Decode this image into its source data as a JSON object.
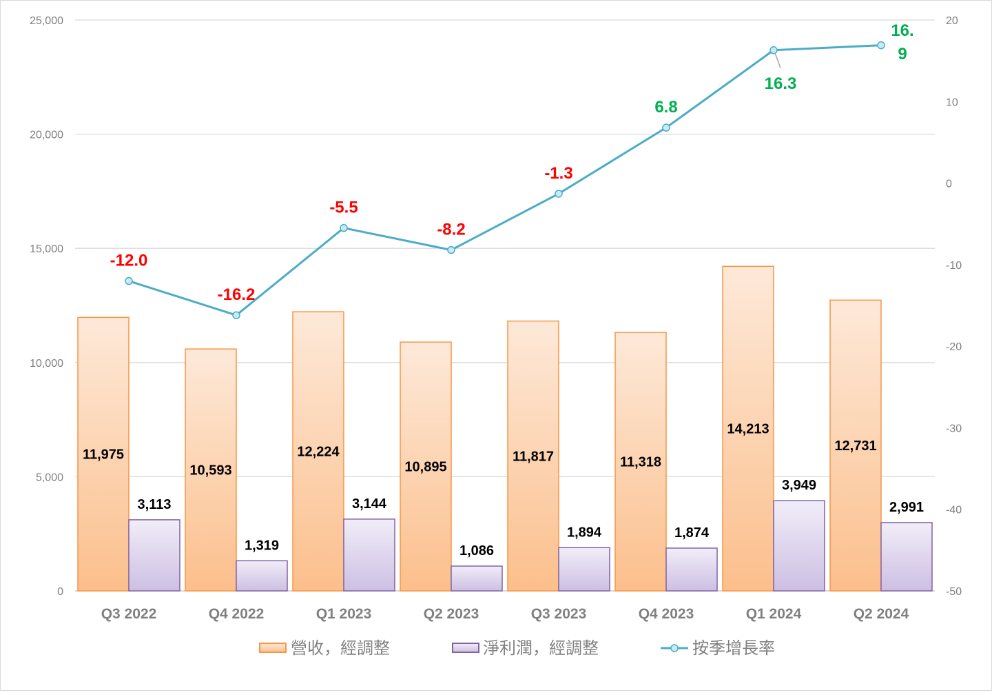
{
  "chart_data": {
    "type": "bar+line",
    "categories": [
      "Q3 2022",
      "Q4 2022",
      "Q1 2023",
      "Q2 2023",
      "Q3 2023",
      "Q4 2023",
      "Q1 2024",
      "Q2 2024"
    ],
    "series": [
      {
        "name": "營收，經調整",
        "type": "bar",
        "axis": "left",
        "values": [
          11975,
          10593,
          12224,
          10895,
          11817,
          11318,
          14213,
          12731
        ],
        "labels": [
          "11,975",
          "10,593",
          "12,224",
          "10,895",
          "11,817",
          "11,318",
          "14,213",
          "12,731"
        ],
        "color": "#f79646"
      },
      {
        "name": "淨利潤，經調整",
        "type": "bar",
        "axis": "left",
        "values": [
          3113,
          1319,
          3144,
          1086,
          1894,
          1874,
          3949,
          2991
        ],
        "labels": [
          "3,113",
          "1,319",
          "3,144",
          "1,086",
          "1,894",
          "1,874",
          "3,949",
          "2,991"
        ],
        "color": "#8064a2"
      },
      {
        "name": "按季增長率",
        "type": "line",
        "axis": "right",
        "values": [
          -12.0,
          -16.2,
          -5.5,
          -8.2,
          -1.3,
          6.8,
          16.3,
          16.9
        ],
        "labels": [
          "-12.0",
          "-16.2",
          "-5.5",
          "-8.2",
          "-1.3",
          "6.8",
          "16.3",
          "16.9"
        ],
        "color": "#4bacc6",
        "negative_label_color": "#ff0000",
        "positive_label_color": "#00b050"
      }
    ],
    "left_axis": {
      "ylim": [
        0,
        25000
      ],
      "ticks": [
        "0",
        "5,000",
        "10,000",
        "15,000",
        "20,000",
        "25,000"
      ]
    },
    "right_axis": {
      "ylim": [
        -50,
        20
      ],
      "ticks": [
        "-50",
        "-40",
        "-30",
        "-20",
        "-10",
        "0",
        "10",
        "20"
      ]
    },
    "grid": true,
    "legend_position": "bottom"
  }
}
